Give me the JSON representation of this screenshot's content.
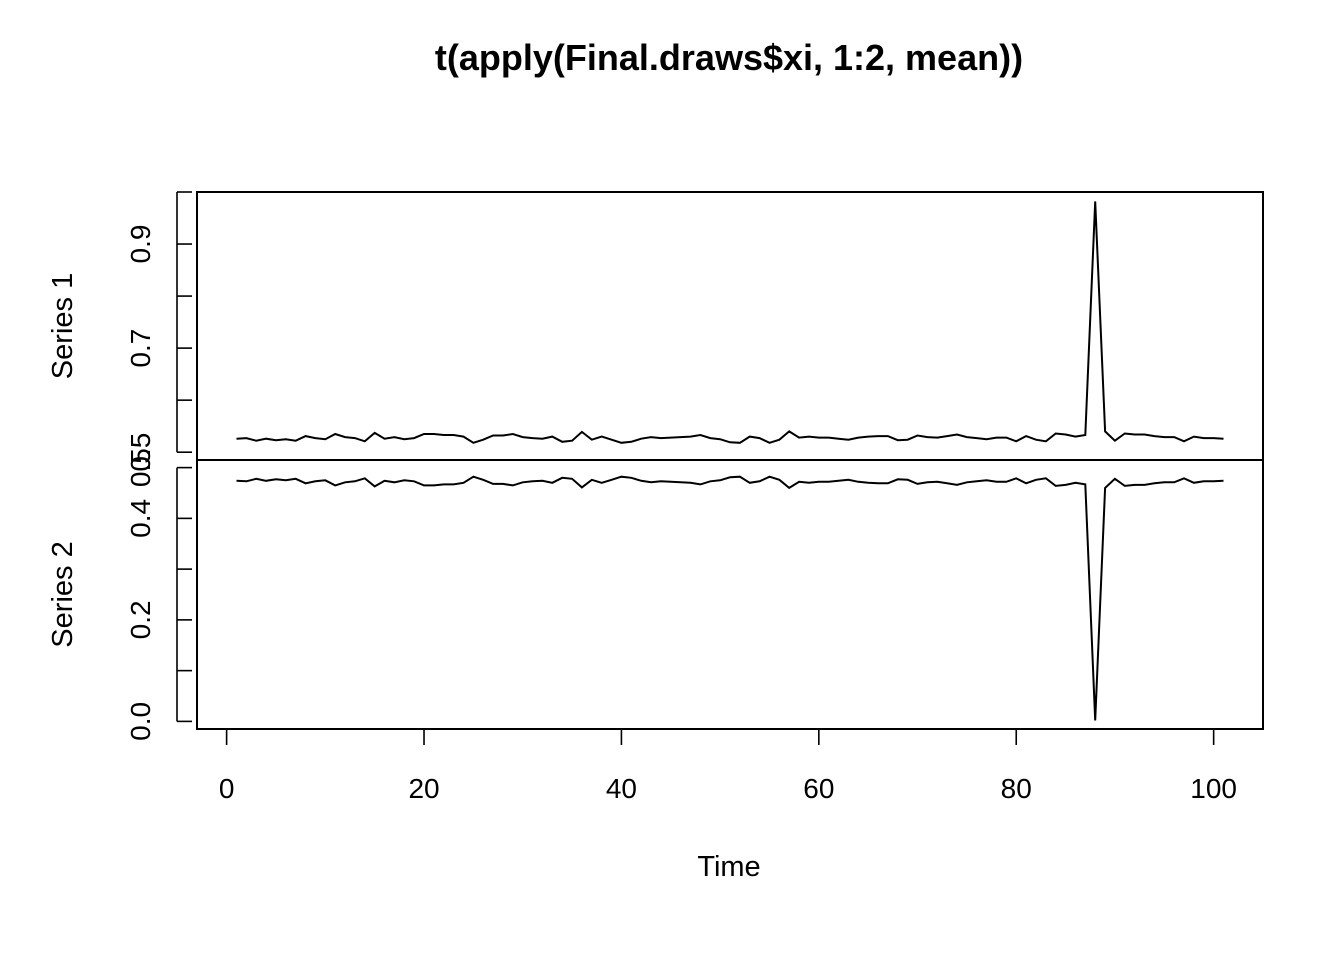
{
  "chart_data": {
    "type": "line",
    "title": "t(apply(Final.draws$xi, 1:2, mean))",
    "xlabel": "Time",
    "xlim": [
      -3,
      105
    ],
    "x_ticks": [
      0,
      20,
      40,
      60,
      80,
      100
    ],
    "x": [
      1,
      2,
      3,
      4,
      5,
      6,
      7,
      8,
      9,
      10,
      11,
      12,
      13,
      14,
      15,
      16,
      17,
      18,
      19,
      20,
      21,
      22,
      23,
      24,
      25,
      26,
      27,
      28,
      29,
      30,
      31,
      32,
      33,
      34,
      35,
      36,
      37,
      38,
      39,
      40,
      41,
      42,
      43,
      44,
      45,
      46,
      47,
      48,
      49,
      50,
      51,
      52,
      53,
      54,
      55,
      56,
      57,
      58,
      59,
      60,
      61,
      62,
      63,
      64,
      65,
      66,
      67,
      68,
      69,
      70,
      71,
      72,
      73,
      74,
      75,
      76,
      77,
      78,
      79,
      80,
      81,
      82,
      83,
      84,
      85,
      86,
      87,
      88,
      89,
      90,
      91,
      92,
      93,
      94,
      95,
      96,
      97,
      98,
      99,
      100,
      101
    ],
    "series": [
      {
        "name": "Series 1",
        "ylabel": "Series 1",
        "ylim": [
          0.485,
          1.0
        ],
        "y_ticks": [
          0.5,
          0.6,
          0.7,
          0.8,
          0.9,
          1.0
        ],
        "y_tick_labels": [
          "0.5",
          "",
          "0.7",
          "",
          "0.9",
          ""
        ],
        "values": [
          0.526,
          0.527,
          0.522,
          0.526,
          0.523,
          0.525,
          0.522,
          0.531,
          0.527,
          0.525,
          0.535,
          0.529,
          0.527,
          0.521,
          0.537,
          0.526,
          0.529,
          0.525,
          0.527,
          0.535,
          0.535,
          0.533,
          0.533,
          0.53,
          0.518,
          0.524,
          0.532,
          0.532,
          0.535,
          0.529,
          0.527,
          0.526,
          0.53,
          0.52,
          0.522,
          0.539,
          0.524,
          0.53,
          0.524,
          0.518,
          0.52,
          0.526,
          0.529,
          0.527,
          0.528,
          0.529,
          0.53,
          0.533,
          0.527,
          0.525,
          0.519,
          0.518,
          0.53,
          0.527,
          0.518,
          0.524,
          0.54,
          0.528,
          0.53,
          0.528,
          0.528,
          0.526,
          0.524,
          0.528,
          0.53,
          0.531,
          0.531,
          0.523,
          0.524,
          0.532,
          0.529,
          0.528,
          0.531,
          0.534,
          0.529,
          0.527,
          0.525,
          0.528,
          0.528,
          0.521,
          0.531,
          0.524,
          0.521,
          0.536,
          0.534,
          0.53,
          0.533,
          0.982,
          0.54,
          0.522,
          0.536,
          0.534,
          0.534,
          0.531,
          0.529,
          0.529,
          0.521,
          0.53,
          0.527,
          0.527,
          0.526
        ]
      },
      {
        "name": "Series 2",
        "ylabel": "Series 2",
        "ylim": [
          -0.015,
          0.515
        ],
        "y_ticks": [
          0.0,
          0.1,
          0.2,
          0.3,
          0.4,
          0.5
        ],
        "y_tick_labels": [
          "0.0",
          "",
          "0.2",
          "",
          "0.4",
          "0.5"
        ],
        "values": [
          0.474,
          0.473,
          0.478,
          0.474,
          0.477,
          0.475,
          0.478,
          0.469,
          0.473,
          0.475,
          0.465,
          0.471,
          0.473,
          0.479,
          0.463,
          0.474,
          0.471,
          0.475,
          0.473,
          0.465,
          0.465,
          0.467,
          0.467,
          0.47,
          0.482,
          0.476,
          0.468,
          0.468,
          0.465,
          0.471,
          0.473,
          0.474,
          0.47,
          0.48,
          0.478,
          0.461,
          0.476,
          0.47,
          0.476,
          0.482,
          0.48,
          0.474,
          0.471,
          0.473,
          0.472,
          0.471,
          0.47,
          0.467,
          0.473,
          0.475,
          0.481,
          0.482,
          0.47,
          0.473,
          0.482,
          0.476,
          0.46,
          0.472,
          0.47,
          0.472,
          0.472,
          0.474,
          0.476,
          0.472,
          0.47,
          0.469,
          0.469,
          0.477,
          0.476,
          0.468,
          0.471,
          0.472,
          0.469,
          0.466,
          0.471,
          0.473,
          0.475,
          0.472,
          0.472,
          0.479,
          0.469,
          0.476,
          0.479,
          0.464,
          0.466,
          0.47,
          0.467,
          0.002,
          0.46,
          0.478,
          0.464,
          0.466,
          0.466,
          0.469,
          0.471,
          0.471,
          0.479,
          0.47,
          0.473,
          0.473,
          0.474
        ]
      }
    ],
    "grid": false,
    "legend": "none"
  }
}
